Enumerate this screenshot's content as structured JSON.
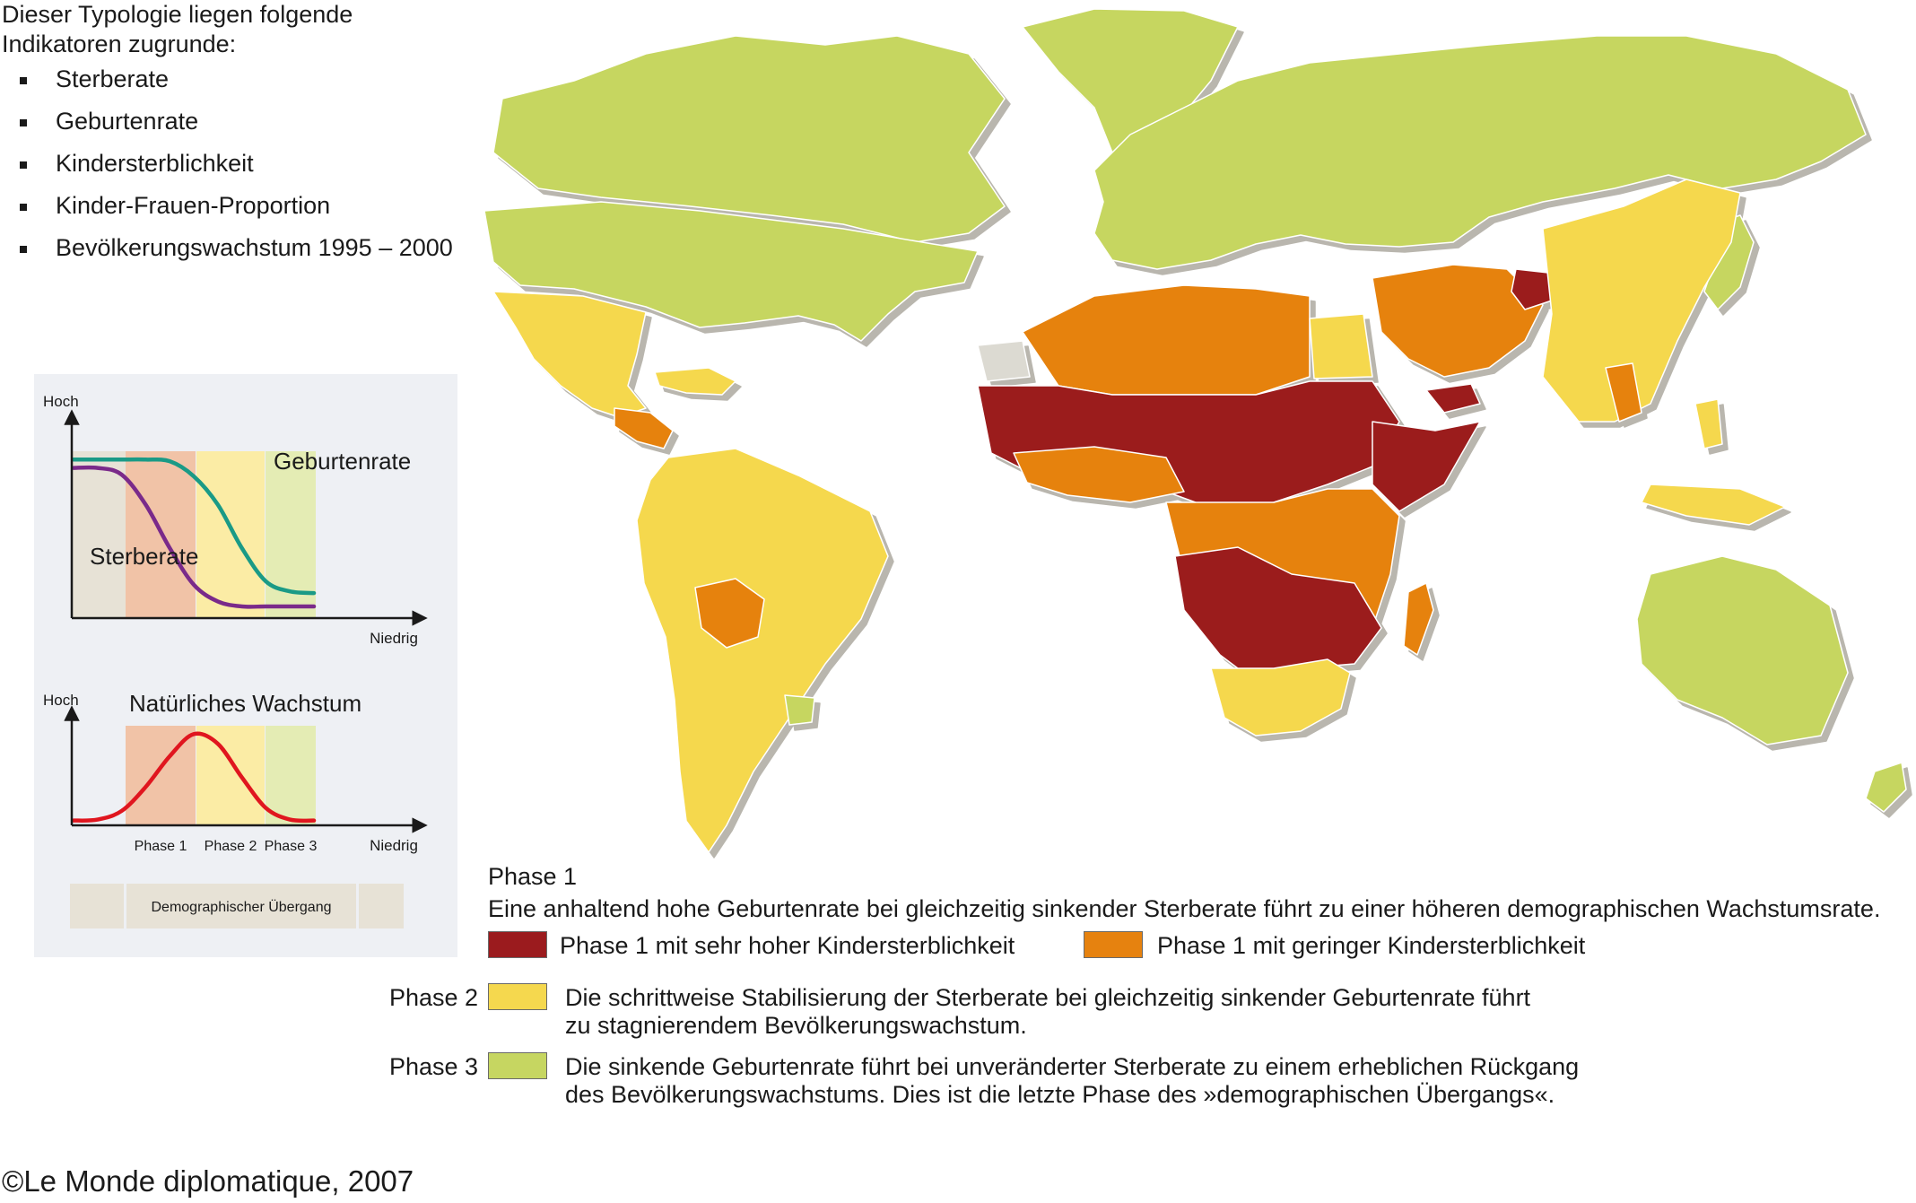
{
  "intro": {
    "line1": "Dieser Typologie liegen folgende",
    "line2": "Indikatoren zugrunde:",
    "indicators": [
      "Sterberate",
      "Geburtenrate",
      "Kindersterblichkeit",
      "Kinder-Frauen-Proportion",
      "Bevölkerungswachstum 1995 – 2000"
    ]
  },
  "chart_data": [
    {
      "type": "line",
      "title": "",
      "ylabel": "Hoch",
      "xlabel": "Niedrig",
      "x": [
        0,
        1,
        2,
        3,
        4,
        5,
        6,
        7,
        8,
        9,
        10
      ],
      "series": [
        {
          "name": "Geburtenrate",
          "values": [
            0.95,
            0.95,
            0.95,
            0.95,
            0.94,
            0.85,
            0.68,
            0.42,
            0.22,
            0.16,
            0.15
          ]
        },
        {
          "name": "Sterberate",
          "values": [
            0.9,
            0.9,
            0.86,
            0.68,
            0.42,
            0.2,
            0.1,
            0.07,
            0.07,
            0.07,
            0.07
          ]
        }
      ],
      "bands": [
        "Phase 1",
        "Phase 2",
        "Phase 3"
      ],
      "grid": false
    },
    {
      "type": "line",
      "title": "Natürliches Wachstum",
      "ylabel": "Hoch",
      "xlabel": "Niedrig",
      "x": [
        0,
        1,
        2,
        3,
        4,
        5,
        6,
        7,
        8,
        9,
        10
      ],
      "series": [
        {
          "name": "",
          "values": [
            0.05,
            0.06,
            0.15,
            0.4,
            0.72,
            0.95,
            0.85,
            0.5,
            0.18,
            0.06,
            0.05
          ]
        }
      ],
      "band_labels": [
        "Phase 1",
        "Phase 2",
        "Phase 3"
      ],
      "grid": false
    }
  ],
  "chart_labels": {
    "hoch": "Hoch",
    "niedrig": "Niedrig",
    "geburtenrate": "Geburtenrate",
    "sterberate": "Sterberate",
    "wachstum_title": "Natürliches Wachstum",
    "phase1": "Phase 1",
    "phase2": "Phase 2",
    "phase3": "Phase 3",
    "transition": "Demographischer Übergang"
  },
  "colors": {
    "phase1_very_high": "#9b1b1e",
    "phase1_low": "#e6820f",
    "phase2": "#f5d84e",
    "phase3": "#c6d661",
    "no_data": "#dcdad2",
    "birth_curve": "#1a9a86",
    "death_curve": "#7a2a8a",
    "growth_curve": "#e0161f"
  },
  "legend": {
    "phase1_heading": "Phase 1",
    "phase1_desc": "Eine anhaltend hohe Geburtenrate bei gleichzeitig sinkender Sterberate führt zu einer höheren demographischen Wachstumsrate.",
    "phase1_very_high": "Phase 1 mit sehr hoher Kindersterblichkeit",
    "phase1_low": "Phase 1 mit geringer Kindersterblichkeit",
    "phase2_heading": "Phase 2",
    "phase2_line1": "Die schrittweise Stabilisierung der Sterberate bei gleichzeitig sinkender Geburtenrate führt",
    "phase2_line2": "zu stagnierendem Bevölkerungswachstum.",
    "phase3_heading": "Phase 3",
    "phase3_line1": "Die sinkende Geburtenrate führt bei unveränderter Sterberate zu einem erheblichen Rückgang",
    "phase3_line2": "des Bevölkerungswachstums. Dies ist die letzte Phase des »demographischen Übergangs«."
  },
  "copyright": "©Le Monde diplomatique, 2007"
}
